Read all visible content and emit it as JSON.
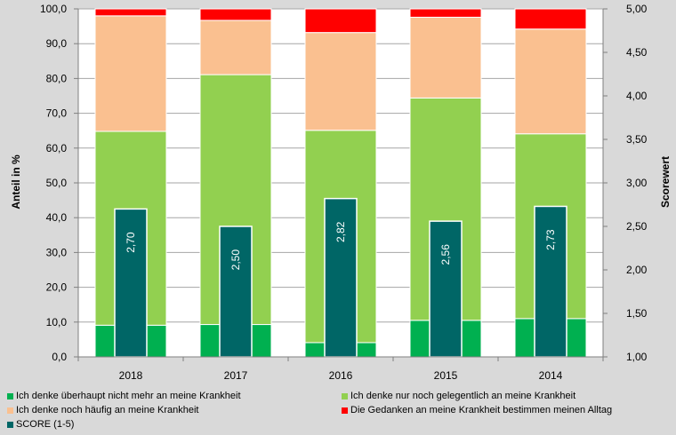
{
  "chart_data": {
    "type": "bar",
    "stacked": true,
    "categories": [
      "2018",
      "2017",
      "2016",
      "2015",
      "2014"
    ],
    "series": [
      {
        "name": "Ich denke überhaupt nicht mehr an meine Krankheit",
        "color": "#00b050",
        "values": [
          9.1,
          9.3,
          4.1,
          10.5,
          11.0
        ]
      },
      {
        "name": "Ich denke nur noch gelegentlich an meine Krankheit",
        "color": "#92d050",
        "values": [
          55.7,
          71.8,
          61.0,
          63.9,
          53.1
        ]
      },
      {
        "name": "Ich denke noch häufig an meine Krankheit",
        "color": "#fac090",
        "values": [
          33.2,
          15.6,
          28.1,
          23.2,
          30.1
        ]
      },
      {
        "name": "Die Gedanken an meine Krankheit bestimmen meinen Alltag",
        "color": "#ff0000",
        "values": [
          2.0,
          3.3,
          6.8,
          2.4,
          5.8
        ]
      }
    ],
    "score_series": {
      "name": "SCORE (1-5)",
      "color": "#006666",
      "values": [
        2.7,
        2.5,
        2.82,
        2.56,
        2.73
      ],
      "labels": [
        "2,70",
        "2,50",
        "2,82",
        "2,56",
        "2,73"
      ]
    },
    "ylabel": "Anteil in %",
    "y2label": "Scorewert",
    "ylim": [
      0,
      100
    ],
    "y2lim": [
      1.0,
      5.0
    ],
    "yticks": [
      "0,0",
      "10,0",
      "20,0",
      "30,0",
      "40,0",
      "50,0",
      "60,0",
      "70,0",
      "80,0",
      "90,0",
      "100,0"
    ],
    "y2ticks": [
      "1,00",
      "1,50",
      "2,00",
      "2,50",
      "3,00",
      "3,50",
      "4,00",
      "4,50",
      "5,00"
    ],
    "legend_position": "bottom"
  }
}
